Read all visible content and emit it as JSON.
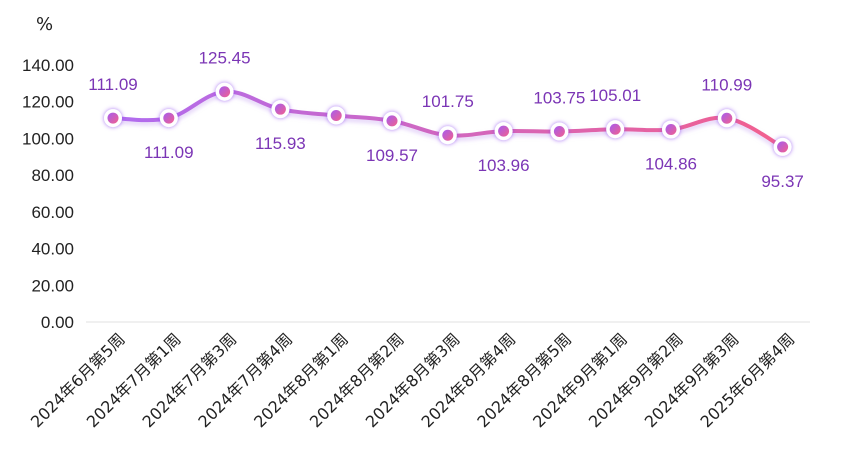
{
  "chart_data": {
    "type": "line",
    "unit_label": "%",
    "categories": [
      "2024年6月第5周",
      "2024年7月第1周",
      "2024年7月第3周",
      "2024年7月第4周",
      "2024年8月第1周",
      "2024年8月第2周",
      "2024年8月第3周",
      "2024年8月第4周",
      "2024年8月第5周",
      "2024年9月第1周",
      "2024年9月第2周",
      "2024年9月第3周",
      "2025年6月第4周"
    ],
    "series": [
      {
        "values": [
          111.09,
          111.09,
          125.45,
          115.93,
          112.5,
          109.57,
          101.75,
          103.96,
          103.75,
          105.01,
          104.86,
          110.99,
          95.37
        ],
        "labels": [
          "111.09",
          "111.09",
          "125.45",
          "115.93",
          "",
          "109.57",
          "101.75",
          "103.96",
          "103.75",
          "105.01",
          "104.86",
          "110.99",
          "95.37"
        ]
      }
    ],
    "ylim": [
      0,
      140
    ],
    "yticks": [
      "0.00",
      "20.00",
      "40.00",
      "60.00",
      "80.00",
      "100.00",
      "120.00",
      "140.00"
    ],
    "grid": false,
    "legend": "none",
    "colors": {
      "line_start": "#b06cf0",
      "line_end": "#f2608e",
      "marker_fill_start": "#a55cf0",
      "marker_fill_end": "#f2608e",
      "label": "#7b35b5"
    }
  }
}
